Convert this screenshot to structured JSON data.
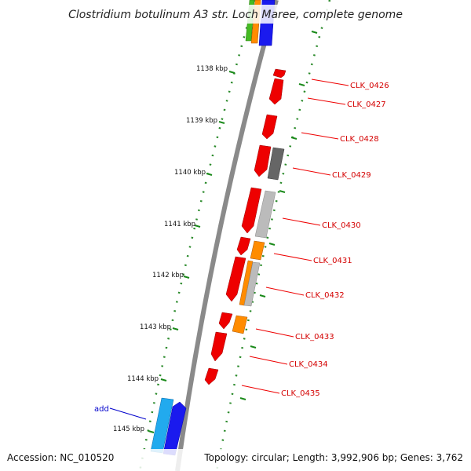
{
  "title": "Clostridium botulinum A3 str. Loch Maree, complete genome",
  "footer": {
    "accession": "Accession: NC_010520",
    "summary": "Topology: circular; Length: 3,992,906 bp; Genes: 3,762"
  },
  "add_label": "add",
  "kbp_ticks": [
    "1138 kbp",
    "1139 kbp",
    "1140 kbp",
    "1141 kbp",
    "1142 kbp",
    "1143 kbp",
    "1144 kbp",
    "1145 kbp"
  ],
  "gene_labels": [
    "CLK_0426",
    "CLK_0427",
    "CLK_0428",
    "CLK_0429",
    "CLK_0430",
    "CLK_0431",
    "CLK_0432",
    "CLK_0433",
    "CLK_0434",
    "CLK_0435"
  ],
  "colors": {
    "backbone": "#8a8a8a",
    "ruler_dots": "#2a8a2a",
    "cds_red": "#ee0000",
    "gray_dark": "#666666",
    "gray_light": "#bbbbbb",
    "orange": "#ff8c00",
    "blue": "#1a1aee",
    "cyan": "#22aaee",
    "green": "#44bb22",
    "label_red": "#d40000",
    "add_blue": "#0000cc"
  }
}
